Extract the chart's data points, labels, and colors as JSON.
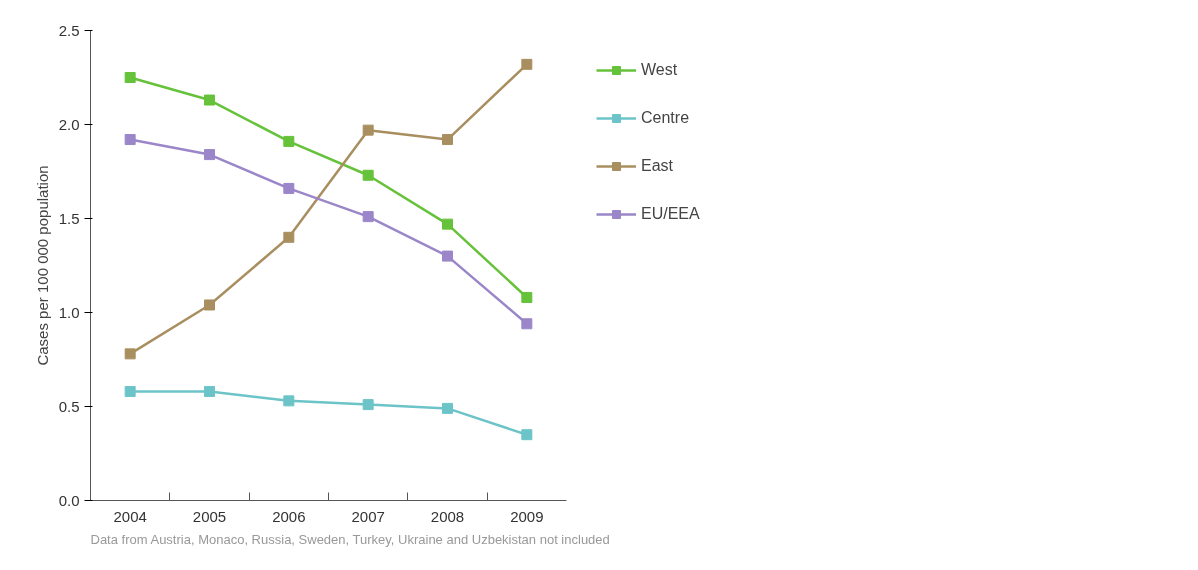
{
  "chart_data": {
    "type": "line",
    "ylabel": "Cases per 100 000 population",
    "categories": [
      "2004",
      "2005",
      "2006",
      "2007",
      "2008",
      "2009"
    ],
    "series": [
      {
        "name": "West",
        "color": "#66c23a",
        "values": [
          2.25,
          2.13,
          1.91,
          1.73,
          1.47,
          1.08
        ]
      },
      {
        "name": "Centre",
        "color": "#6cc4c8",
        "values": [
          0.58,
          0.58,
          0.53,
          0.51,
          0.49,
          0.35
        ]
      },
      {
        "name": "East",
        "color": "#a98f5f",
        "values": [
          0.78,
          1.04,
          1.4,
          1.97,
          1.92,
          2.32
        ]
      },
      {
        "name": "EU/EEA",
        "color": "#9a86c8",
        "values": [
          1.92,
          1.84,
          1.66,
          1.51,
          1.3,
          0.94
        ]
      }
    ],
    "ylim": [
      0,
      2.5
    ],
    "yticks": [
      {
        "value": 0,
        "label": "0.0"
      },
      {
        "value": 0.5,
        "label": "0.5"
      },
      {
        "value": 1,
        "label": "1.0"
      },
      {
        "value": 1.5,
        "label": "1.5"
      },
      {
        "value": 2,
        "label": "2.0"
      },
      {
        "value": 2.5,
        "label": "2.5"
      }
    ],
    "grid": false,
    "legend": "right",
    "marker": "square",
    "line_style": "solid",
    "annotations": [
      "Data from Austria, Monaco, Russia, Sweden, Turkey, Ukraine and Uzbekistan not included"
    ]
  }
}
